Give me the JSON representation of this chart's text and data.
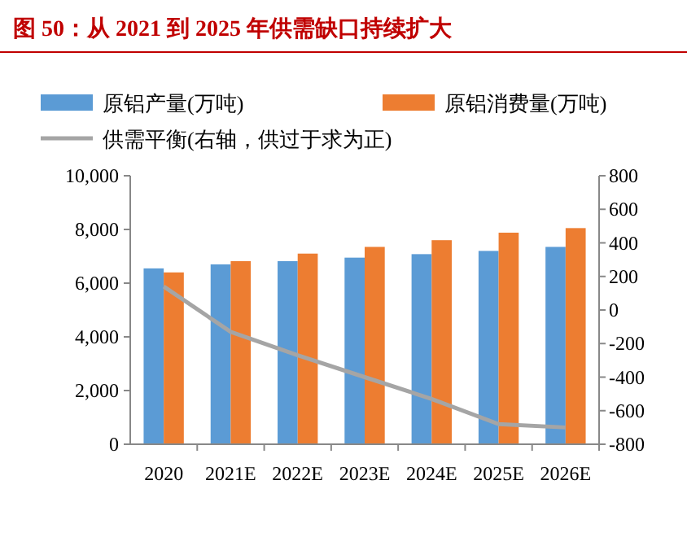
{
  "chart_data": {
    "type": "bar",
    "title": "图 50：从 2021 到 2025 年供需缺口持续扩大",
    "categories": [
      "2020",
      "2021E",
      "2022E",
      "2023E",
      "2024E",
      "2025E",
      "2026E"
    ],
    "series": [
      {
        "name": "原铝产量(万吨)",
        "color": "#5b9bd5",
        "values": [
          6550,
          6700,
          6820,
          6950,
          7080,
          7200,
          7350
        ]
      },
      {
        "name": "原铝消费量(万吨)",
        "color": "#ed7d31",
        "values": [
          6400,
          6820,
          7100,
          7350,
          7600,
          7880,
          8050
        ]
      },
      {
        "name": "供需平衡(右轴，供过于求为正)",
        "type": "line",
        "axis": "y2",
        "color": "#a5a5a5",
        "values": [
          140,
          -130,
          -270,
          -400,
          -530,
          -680,
          -700
        ]
      }
    ],
    "ylim": [
      0,
      10000
    ],
    "yticks": [
      {
        "value": 0,
        "label": "0"
      },
      {
        "value": 2000,
        "label": "2,000"
      },
      {
        "value": 4000,
        "label": "4,000"
      },
      {
        "value": 6000,
        "label": "6,000"
      },
      {
        "value": 8000,
        "label": "8,000"
      },
      {
        "value": 10000,
        "label": "10,000"
      }
    ],
    "y2lim": [
      -800,
      800
    ],
    "y2ticks": [
      -800,
      -600,
      -400,
      -200,
      0,
      200,
      400,
      600,
      800
    ],
    "legend": "top",
    "grid": false,
    "marker": "none",
    "line_style": "solid"
  }
}
